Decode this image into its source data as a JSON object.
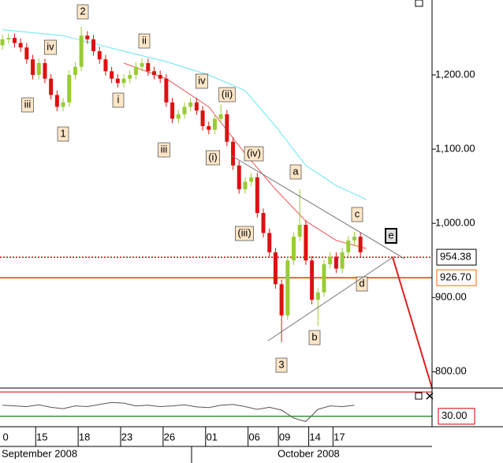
{
  "chart_data": {
    "type": "candlestick",
    "categories": [
      "0",
      null,
      null,
      null,
      null,
      null,
      "15",
      null,
      null,
      null,
      null,
      null,
      null,
      "18",
      null,
      null,
      null,
      null,
      null,
      null,
      "23",
      null,
      null,
      null,
      null,
      null,
      null,
      "26",
      null,
      null,
      null,
      null,
      null,
      null,
      "01",
      null,
      null,
      null,
      null,
      null,
      null,
      "06",
      null,
      null,
      null,
      null,
      "09",
      null,
      null,
      null,
      null,
      "14",
      null,
      null,
      null,
      "17",
      null,
      null,
      null,
      null
    ],
    "open": [
      1240,
      1248,
      1250,
      1243,
      1237,
      1221,
      1200,
      1216,
      1195,
      1173,
      1157,
      1163,
      1200,
      1211,
      1253,
      1248,
      1232,
      1221,
      1205,
      1195,
      1189,
      1195,
      1200,
      1211,
      1216,
      1205,
      1200,
      1195,
      1163,
      1141,
      1147,
      1157,
      1163,
      1152,
      1131,
      1126,
      1141,
      1147,
      1110,
      1078,
      1046,
      1056,
      1062,
      1014,
      987,
      961,
      918,
      876,
      950,
      982,
      998,
      950,
      897,
      907,
      945,
      955,
      939,
      961,
      977,
      982
    ],
    "high": [
      1254,
      1256,
      1256,
      1249,
      1243,
      1227,
      1222,
      1222,
      1201,
      1179,
      1169,
      1206,
      1217,
      1265,
      1259,
      1254,
      1238,
      1227,
      1211,
      1201,
      1201,
      1206,
      1217,
      1222,
      1222,
      1211,
      1206,
      1201,
      1169,
      1153,
      1163,
      1169,
      1169,
      1158,
      1137,
      1147,
      1160,
      1153,
      1116,
      1084,
      1062,
      1068,
      1068,
      1020,
      993,
      967,
      924,
      956,
      988,
      1046,
      1004,
      956,
      913,
      951,
      961,
      961,
      967,
      983,
      988,
      988
    ],
    "low": [
      1234,
      1242,
      1237,
      1231,
      1215,
      1194,
      1194,
      1189,
      1167,
      1151,
      1151,
      1157,
      1194,
      1205,
      1242,
      1226,
      1215,
      1199,
      1189,
      1183,
      1183,
      1189,
      1194,
      1205,
      1199,
      1194,
      1189,
      1157,
      1135,
      1135,
      1141,
      1151,
      1146,
      1125,
      1120,
      1120,
      1135,
      1104,
      1072,
      1040,
      1040,
      1050,
      1008,
      981,
      955,
      912,
      840,
      870,
      944,
      976,
      944,
      891,
      862,
      901,
      939,
      933,
      933,
      955,
      971,
      955
    ],
    "close": [
      1248,
      1250,
      1243,
      1237,
      1221,
      1200,
      1216,
      1195,
      1173,
      1157,
      1163,
      1200,
      1211,
      1253,
      1248,
      1232,
      1221,
      1205,
      1195,
      1189,
      1195,
      1200,
      1211,
      1216,
      1205,
      1200,
      1195,
      1163,
      1141,
      1147,
      1157,
      1163,
      1152,
      1131,
      1126,
      1141,
      1147,
      1110,
      1078,
      1046,
      1056,
      1062,
      1014,
      987,
      961,
      918,
      876,
      950,
      982,
      998,
      950,
      897,
      907,
      945,
      955,
      939,
      961,
      977,
      982,
      961
    ],
    "up_color": "#99cc33",
    "down_color": "#dd1111",
    "xlim": [
      -0.4,
      70.8
    ],
    "ylim": [
      778,
      1301
    ],
    "yticks": [
      {
        "value": 800,
        "label": "800.00"
      },
      {
        "value": 900,
        "label": "900.00"
      },
      {
        "value": 1000,
        "label": "1,000.00"
      },
      {
        "value": 1100,
        "label": "1,100.00"
      },
      {
        "value": 1200,
        "label": "1,200.00"
      }
    ],
    "months": [
      "September 2008",
      "October 2008"
    ],
    "lines": [
      {
        "color": "#66e6f0",
        "x": [
          0,
          10,
          20,
          27,
          34,
          40,
          45,
          50,
          55,
          60
        ],
        "values": [
          1261,
          1253,
          1232,
          1218,
          1200,
          1179,
          1131,
          1078,
          1051,
          1032
        ]
      },
      {
        "color": "#ee5555",
        "x": [
          20,
          27,
          34,
          40,
          45,
          50,
          55,
          60
        ],
        "values": [
          1216,
          1195,
          1157,
          1094,
          1046,
          1003,
          977,
          966
        ]
      }
    ],
    "levels": [
      {
        "value": 954.38,
        "label": "954.38",
        "color": "#cc0000",
        "style": "dotted"
      },
      {
        "value": 926.7,
        "label": "926.70",
        "color": "#ff6600",
        "style": "solid"
      }
    ],
    "wave_labels": [
      "2",
      "iv",
      "ii",
      "iii",
      "1",
      "i",
      "iv",
      "(ii)",
      "iii",
      "(i)",
      "(iv)",
      "a",
      "(iii)",
      "c",
      "e",
      "d",
      "b",
      "3"
    ],
    "oscillator": {
      "color": "#555555",
      "ylim": [
        0,
        100
      ],
      "x": [
        0,
        2,
        4,
        6,
        8,
        10,
        12,
        14,
        16,
        18,
        20,
        22,
        24,
        26,
        28,
        30,
        32,
        34,
        36,
        38,
        40,
        42,
        44,
        46,
        48,
        50,
        52,
        54,
        56,
        58
      ],
      "values": [
        62,
        60,
        58,
        63,
        56,
        52,
        60,
        58,
        64,
        70,
        68,
        60,
        62,
        58,
        60,
        63,
        57,
        55,
        62,
        64,
        58,
        50,
        56,
        48,
        25,
        15,
        50,
        60,
        58,
        62
      ],
      "level": {
        "value": 30,
        "label": "30.00",
        "color": "#339933"
      }
    }
  }
}
